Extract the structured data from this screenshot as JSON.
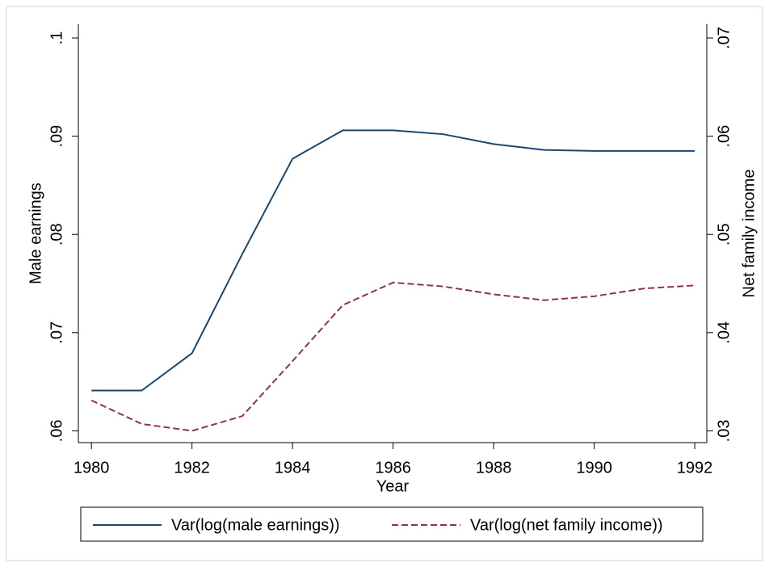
{
  "chart_data": {
    "type": "line",
    "x": [
      1980,
      1981,
      1982,
      1983,
      1984,
      1985,
      1986,
      1987,
      1988,
      1989,
      1990,
      1991,
      1992
    ],
    "xlabel": "Year",
    "ylabel": "Male earnings",
    "y2label": "Net family income",
    "xlim": [
      1979.74,
      1992.24
    ],
    "xticks": [
      1980,
      1982,
      1984,
      1986,
      1988,
      1990,
      1992
    ],
    "ylim": [
      0.0588,
      0.1014
    ],
    "yticks": [
      {
        "value": 0.06,
        "label": ".06"
      },
      {
        "value": 0.07,
        "label": ".07"
      },
      {
        "value": 0.08,
        "label": ".08"
      },
      {
        "value": 0.09,
        "label": ".09"
      },
      {
        "value": 0.1,
        "label": ".1"
      }
    ],
    "y2lim": [
      0.0288,
      0.0714
    ],
    "y2ticks": [
      {
        "value": 0.03,
        "label": ".03"
      },
      {
        "value": 0.04,
        "label": ".04"
      },
      {
        "value": 0.05,
        "label": ".05"
      },
      {
        "value": 0.06,
        "label": ".06"
      },
      {
        "value": 0.07,
        "label": ".07"
      }
    ],
    "series": [
      {
        "name": "Var(log(male earnings))",
        "color": "#1a476f",
        "dash": "solid",
        "values": [
          0.0641,
          0.0641,
          0.0679,
          0.078,
          0.0877,
          0.0906,
          0.0906,
          0.0902,
          0.0892,
          0.0886,
          0.0885,
          0.0885,
          0.0885
        ]
      },
      {
        "name": "Var(log(net family income))",
        "color": "#90353b",
        "dash": "dashed",
        "axis": "y2",
        "values": [
          0.0331,
          0.0307,
          0.03,
          0.0315,
          0.0371,
          0.0428,
          0.0451,
          0.0447,
          0.0439,
          0.0433,
          0.0437,
          0.0445,
          0.0448
        ]
      }
    ]
  }
}
